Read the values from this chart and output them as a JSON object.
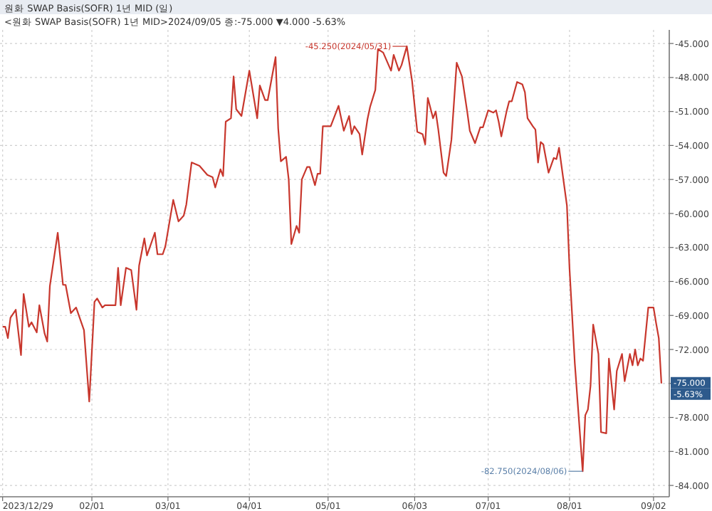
{
  "chart_data": {
    "type": "line",
    "title": "원화 SWAP Basis(SOFR) 1년 MID (일)",
    "subtitle": "<원화 SWAP Basis(SOFR) 1년 MID>2024/09/05 종:-75.000 ▼4.000 -5.63%",
    "x": [
      "2023-12-29",
      "2023-12-30",
      "2023-12-31",
      "2024-01-01",
      "2024-01-03",
      "2024-01-05",
      "2024-01-06",
      "2024-01-08",
      "2024-01-09",
      "2024-01-11",
      "2024-01-12",
      "2024-01-14",
      "2024-01-15",
      "2024-01-16",
      "2024-01-19",
      "2024-01-21",
      "2024-01-22",
      "2024-01-24",
      "2024-01-26",
      "2024-01-29",
      "2024-01-31",
      "2024-02-02",
      "2024-02-03",
      "2024-02-05",
      "2024-02-06",
      "2024-02-10",
      "2024-02-11",
      "2024-02-12",
      "2024-02-14",
      "2024-02-16",
      "2024-02-18",
      "2024-02-19",
      "2024-02-21",
      "2024-02-22",
      "2024-02-25",
      "2024-02-26",
      "2024-02-28",
      "2024-02-29",
      "2024-03-03",
      "2024-03-05",
      "2024-03-07",
      "2024-03-08",
      "2024-03-10",
      "2024-03-13",
      "2024-03-16",
      "2024-03-18",
      "2024-03-19",
      "2024-03-21",
      "2024-03-22",
      "2024-03-23",
      "2024-03-25",
      "2024-03-26",
      "2024-03-27",
      "2024-03-29",
      "2024-04-01",
      "2024-04-04",
      "2024-04-05",
      "2024-04-07",
      "2024-04-08",
      "2024-04-11",
      "2024-04-12",
      "2024-04-13",
      "2024-04-15",
      "2024-04-16",
      "2024-04-17",
      "2024-04-19",
      "2024-04-20",
      "2024-04-21",
      "2024-04-23",
      "2024-04-24",
      "2024-04-26",
      "2024-04-27",
      "2024-04-28",
      "2024-04-29",
      "2024-05-02",
      "2024-05-05",
      "2024-05-07",
      "2024-05-09",
      "2024-05-10",
      "2024-05-11",
      "2024-05-13",
      "2024-05-14",
      "2024-05-16",
      "2024-05-17",
      "2024-05-19",
      "2024-05-20",
      "2024-05-22",
      "2024-05-25",
      "2024-05-26",
      "2024-05-28",
      "2024-05-29",
      "2024-05-31",
      "2024-06-02",
      "2024-06-04",
      "2024-06-06",
      "2024-06-07",
      "2024-06-08",
      "2024-06-10",
      "2024-06-11",
      "2024-06-12",
      "2024-06-14",
      "2024-06-15",
      "2024-06-17",
      "2024-06-19",
      "2024-06-21",
      "2024-06-23",
      "2024-06-24",
      "2024-06-26",
      "2024-06-28",
      "2024-06-29",
      "2024-07-01",
      "2024-07-03",
      "2024-07-04",
      "2024-07-05",
      "2024-07-06",
      "2024-07-08",
      "2024-07-09",
      "2024-07-10",
      "2024-07-12",
      "2024-07-14",
      "2024-07-15",
      "2024-07-16",
      "2024-07-18",
      "2024-07-19",
      "2024-07-20",
      "2024-07-21",
      "2024-07-22",
      "2024-07-24",
      "2024-07-26",
      "2024-07-27",
      "2024-07-28",
      "2024-07-31",
      "2024-08-01",
      "2024-08-03",
      "2024-08-06",
      "2024-08-07",
      "2024-08-08",
      "2024-08-09",
      "2024-08-10",
      "2024-08-12",
      "2024-08-13",
      "2024-08-15",
      "2024-08-16",
      "2024-08-18",
      "2024-08-19",
      "2024-08-21",
      "2024-08-22",
      "2024-08-24",
      "2024-08-25",
      "2024-08-26",
      "2024-08-27",
      "2024-08-28",
      "2024-08-29",
      "2024-08-31",
      "2024-09-02",
      "2024-09-03",
      "2024-09-04",
      "2024-09-05"
    ],
    "values": [
      -70.0,
      -70.0,
      -71.0,
      -69.2,
      -68.5,
      -72.5,
      -67.1,
      -70.0,
      -69.6,
      -70.5,
      -68.1,
      -70.6,
      -71.3,
      -66.4,
      -61.7,
      -66.3,
      -66.3,
      -68.8,
      -68.3,
      -70.3,
      -76.6,
      -67.8,
      -67.5,
      -68.3,
      -68.1,
      -68.1,
      -64.8,
      -68.1,
      -64.8,
      -65.0,
      -68.5,
      -64.6,
      -62.2,
      -63.7,
      -61.7,
      -63.6,
      -63.6,
      -62.9,
      -58.8,
      -60.7,
      -60.2,
      -59.2,
      -55.5,
      -55.8,
      -56.6,
      -56.8,
      -57.7,
      -56.1,
      -56.7,
      -51.9,
      -51.6,
      -47.9,
      -50.8,
      -51.4,
      -47.4,
      -51.6,
      -48.7,
      -50.0,
      -50.0,
      -46.2,
      -52.5,
      -55.4,
      -55.0,
      -57.0,
      -62.7,
      -61.1,
      -61.7,
      -57.0,
      -55.9,
      -55.9,
      -57.5,
      -56.5,
      -56.5,
      -52.3,
      -52.3,
      -50.5,
      -52.7,
      -51.4,
      -53.0,
      -52.3,
      -53.0,
      -54.8,
      -51.7,
      -50.6,
      -49.1,
      -45.5,
      -45.8,
      -47.4,
      -46.0,
      -47.4,
      -46.9,
      -45.25,
      -48.3,
      -52.8,
      -53.0,
      -53.9,
      -49.8,
      -51.6,
      -51.0,
      -52.6,
      -56.4,
      -56.7,
      -53.5,
      -46.7,
      -47.9,
      -51.0,
      -52.7,
      -53.8,
      -52.4,
      -52.4,
      -50.9,
      -51.1,
      -50.9,
      -51.9,
      -53.2,
      -51.0,
      -50.1,
      -50.1,
      -48.4,
      -48.6,
      -49.3,
      -51.6,
      -52.3,
      -52.6,
      -55.5,
      -53.7,
      -53.9,
      -56.4,
      -55.1,
      -55.2,
      -54.2,
      -59.3,
      -64.9,
      -73.2,
      -82.75,
      -77.8,
      -77.3,
      -75.2,
      -69.8,
      -72.4,
      -79.3,
      -79.4,
      -72.8,
      -77.3,
      -73.9,
      -72.4,
      -74.8,
      -72.4,
      -73.4,
      -72.0,
      -73.4,
      -72.8,
      -73.0,
      -68.3,
      -68.3,
      -69.7,
      -71.0,
      -75.0
    ],
    "color": "#c8372d",
    "xlim": [
      "2023-12-28",
      "2024-09-08"
    ],
    "ylim": [
      -85,
      -43.8
    ],
    "xticks": [
      {
        "value": "2023-12-29",
        "label": "2023/12/29"
      },
      {
        "value": "2024-02-01",
        "label": "02/01"
      },
      {
        "value": "2024-03-01",
        "label": "03/01"
      },
      {
        "value": "2024-04-01",
        "label": "04/01"
      },
      {
        "value": "2024-05-01",
        "label": "05/01"
      },
      {
        "value": "2024-06-03",
        "label": "06/03"
      },
      {
        "value": "2024-07-01",
        "label": "07/01"
      },
      {
        "value": "2024-08-01",
        "label": "08/01"
      },
      {
        "value": "2024-09-02",
        "label": "09/02"
      }
    ],
    "yticks": [
      {
        "value": -45,
        "label": "-45.000"
      },
      {
        "value": -48,
        "label": "-48.000"
      },
      {
        "value": -51,
        "label": "-51.000"
      },
      {
        "value": -54,
        "label": "-54.000"
      },
      {
        "value": -57,
        "label": "-57.000"
      },
      {
        "value": -60,
        "label": "-60.000"
      },
      {
        "value": -63,
        "label": "-63.000"
      },
      {
        "value": -66,
        "label": "-66.000"
      },
      {
        "value": -69,
        "label": "-69.000"
      },
      {
        "value": -72,
        "label": "-72.000"
      },
      {
        "value": -75,
        "label": null
      },
      {
        "value": -78,
        "label": "-78.000"
      },
      {
        "value": -81,
        "label": "-81.000"
      },
      {
        "value": -84,
        "label": "-84.000"
      }
    ],
    "grid": true,
    "annotations": [
      {
        "text": "-45.250(2024/05/31)",
        "x": "2024-05-31",
        "y": -45.25
      },
      {
        "text": "-82.750(2024/08/06)",
        "x": "2024-08-06",
        "y": -82.75
      },
      "-75.000",
      "-5.63%"
    ]
  }
}
